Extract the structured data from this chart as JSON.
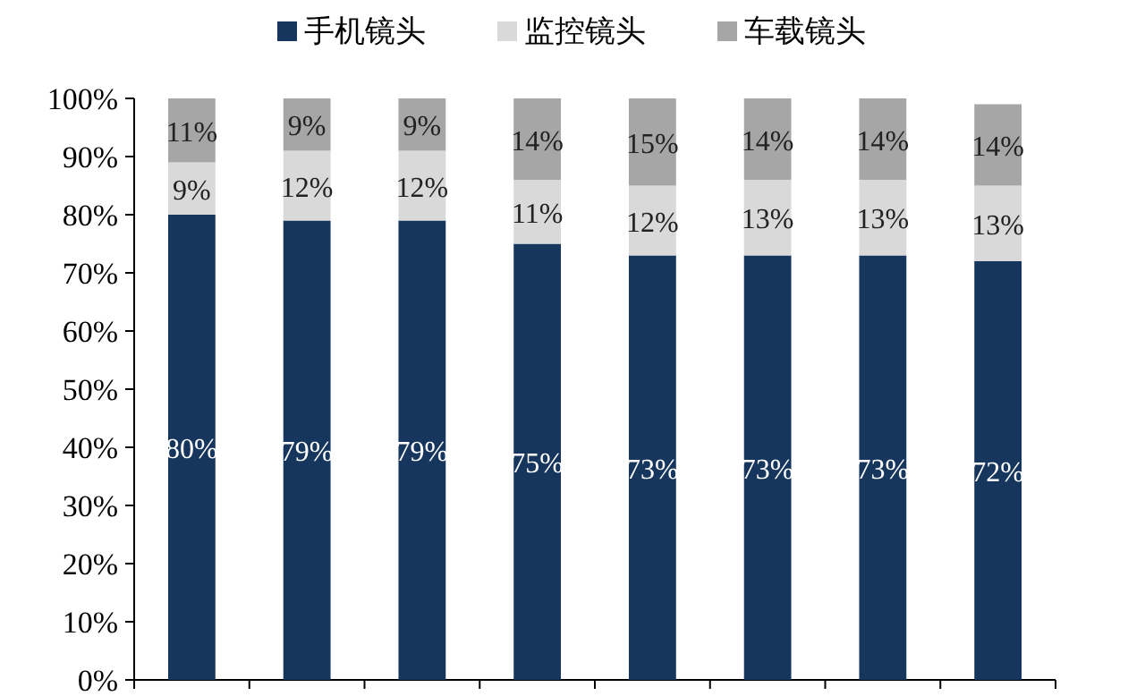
{
  "chart_data": {
    "type": "bar",
    "stacked": true,
    "legend": "top",
    "grid": false,
    "categories": [
      null,
      null,
      null,
      null,
      null,
      null,
      null,
      null
    ],
    "ylim": [
      0,
      100
    ],
    "yticks": [
      {
        "value": 0,
        "label": "0%"
      },
      {
        "value": 10,
        "label": "10%"
      },
      {
        "value": 20,
        "label": "20%"
      },
      {
        "value": 30,
        "label": "30%"
      },
      {
        "value": 40,
        "label": "40%"
      },
      {
        "value": 50,
        "label": "50%"
      },
      {
        "value": 60,
        "label": "60%"
      },
      {
        "value": 70,
        "label": "70%"
      },
      {
        "value": 80,
        "label": "80%"
      },
      {
        "value": 90,
        "label": "90%"
      },
      {
        "value": 100,
        "label": "100%"
      }
    ],
    "series": [
      {
        "name": "手机镜头",
        "color": "#17365d",
        "values": [
          80,
          79,
          79,
          75,
          73,
          73,
          73,
          72
        ],
        "value_labels": [
          "80%",
          "79%",
          "79%",
          "75%",
          "73%",
          "73%",
          "73%",
          "72%"
        ]
      },
      {
        "name": "监控镜头",
        "color": "#d9d9d9",
        "values": [
          9,
          12,
          12,
          11,
          12,
          13,
          13,
          13
        ],
        "value_labels": [
          "9%",
          "12%",
          "12%",
          "11%",
          "12%",
          "13%",
          "13%",
          "13%"
        ]
      },
      {
        "name": "车载镜头",
        "color": "#a6a6a6",
        "values": [
          11,
          9,
          9,
          14,
          15,
          14,
          14,
          14
        ],
        "value_labels": [
          "11%",
          "9%",
          "9%",
          "14%",
          "15%",
          "14%",
          "14%",
          "14%"
        ]
      }
    ]
  }
}
